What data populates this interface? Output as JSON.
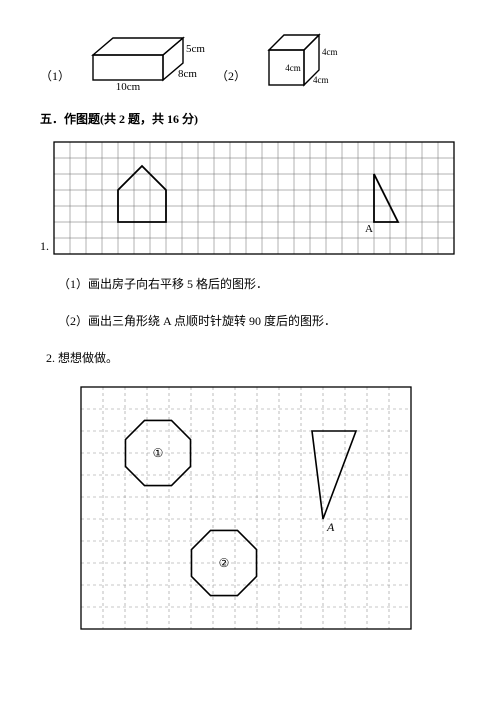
{
  "q_prefix_1": "（1）",
  "q_prefix_2": "（2）",
  "cuboid": {
    "len_label": "10cm",
    "width_label": "8cm",
    "height_label": "5cm",
    "stroke": "#000000"
  },
  "cube": {
    "side_label": "4cm",
    "stroke": "#000000"
  },
  "section5_title": "五．作图题(共 2 题，共 16 分)",
  "grid1": {
    "cols": 25,
    "rows": 7,
    "cell": 16,
    "stroke": "#666666",
    "shape_stroke": "#000000",
    "q_number": "1.",
    "triangle_label": "A"
  },
  "sub1": "（1）画出房子向右平移 5 格后的图形．",
  "sub2": "（2）画出三角形绕 A 点顺时针旋转 90 度后的图形．",
  "q2_title": "2. 想想做做。",
  "grid2": {
    "cols": 15,
    "rows": 11,
    "cell": 22,
    "grid_stroke": "#909090",
    "shape_stroke": "#000000",
    "oct1_label": "①",
    "oct2_label": "②",
    "triangle_label": "A"
  }
}
